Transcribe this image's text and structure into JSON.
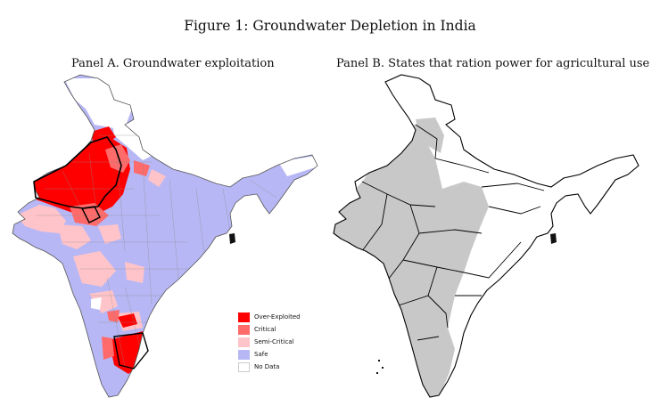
{
  "figure": {
    "title": "Figure 1: Groundwater Depletion in India"
  },
  "panel_a": {
    "title": "Panel A. Groundwater exploitation",
    "legend": [
      {
        "label": "Over-Exploited",
        "color": "#ff0000"
      },
      {
        "label": "Critical",
        "color": "#ff6a6a"
      },
      {
        "label": "Semi-Critical",
        "color": "#ffc4c9"
      },
      {
        "label": "Safe",
        "color": "#b7b7f5"
      },
      {
        "label": "No Data",
        "color": "#ffffff"
      }
    ]
  },
  "panel_b": {
    "title": "Panel B. States that ration power for agricultural use",
    "colors": {
      "rationing": "#c8c8c8",
      "not_rationing": "#ffffff"
    }
  }
}
